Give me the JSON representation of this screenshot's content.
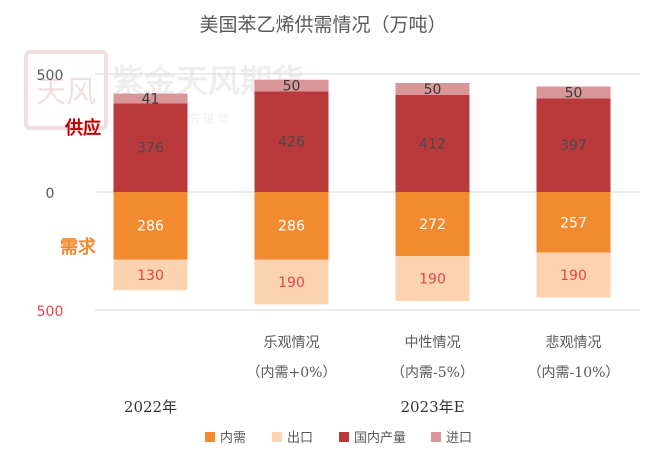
{
  "chart_data": {
    "type": "bar",
    "stacked": "diverging",
    "title": "美国苯乙烯供需情况（万吨）",
    "categories": [
      {
        "label": "",
        "sublabel": ""
      },
      {
        "label": "乐观情况",
        "sublabel": "（内需+0%）"
      },
      {
        "label": "中性情况",
        "sublabel": "（内需-5%）"
      },
      {
        "label": "悲观情况",
        "sublabel": "（内需-10%）"
      }
    ],
    "groups": [
      {
        "label": "2022年",
        "categories": [
          0
        ]
      },
      {
        "label": "2023年E",
        "categories": [
          1,
          2,
          3
        ]
      }
    ],
    "series": [
      {
        "name": "内需",
        "side": "demand",
        "color": "#f28a30",
        "values": [
          286,
          286,
          272,
          257
        ]
      },
      {
        "name": "出口",
        "side": "demand",
        "color": "#fbd3b1",
        "values": [
          130,
          190,
          190,
          190
        ]
      },
      {
        "name": "国内产量",
        "side": "supply",
        "color": "#b9393d",
        "values": [
          376,
          426,
          412,
          397
        ]
      },
      {
        "name": "进口",
        "side": "supply",
        "color": "#d99698",
        "values": [
          41,
          50,
          50,
          50
        ]
      }
    ],
    "y_ticks": [
      {
        "value": 500,
        "label": "500"
      },
      {
        "value": 0,
        "label": "0"
      },
      {
        "value": -500,
        "label": "500"
      }
    ],
    "ylim": [
      -500,
      500
    ],
    "side_labels": {
      "supply": "供应",
      "demand": "需求"
    },
    "legend_position": "bottom",
    "grid": true
  },
  "watermark": {
    "logo_text": "天风",
    "brand": "紫金天风期货",
    "slogan": "立 足 产 业   研 究 驱 动"
  }
}
